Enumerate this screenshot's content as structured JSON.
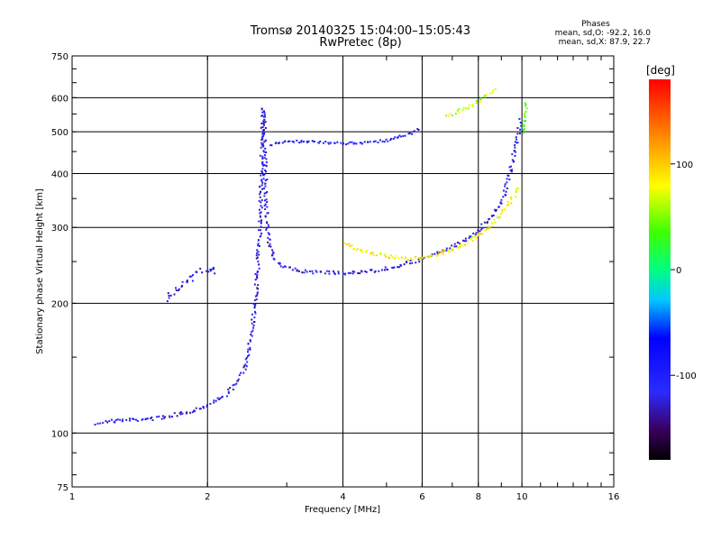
{
  "chart_data": {
    "type": "scatter",
    "title": "Tromsø 20140325 15:04:00–15:05:43",
    "subtitle": "RwPretec (8p)",
    "xlabel": "Frequency [MHz]",
    "ylabel": "Stationary phase Virtual Height [km]",
    "x_scale": "log",
    "y_scale": "log",
    "xlim": [
      1,
      16
    ],
    "ylim": [
      75,
      750
    ],
    "x_ticks": [
      1,
      2,
      4,
      6,
      8,
      10,
      16
    ],
    "y_ticks": [
      75,
      100,
      200,
      300,
      400,
      500,
      600,
      750
    ],
    "grid": true,
    "stats": {
      "header": "Phases",
      "line_o": "mean, sd,O: -92.2, 16.0",
      "line_x": "mean, sd,X:  87.9, 22.7"
    },
    "colorbar": {
      "label": "[deg]",
      "ticks": [
        100,
        0,
        -100
      ],
      "range": [
        -180,
        180
      ]
    },
    "series": [
      {
        "points": [
          [
            1.13,
            106
          ],
          [
            1.2,
            107
          ],
          [
            1.3,
            107.5
          ],
          [
            1.4,
            108
          ],
          [
            1.5,
            108.5
          ],
          [
            1.6,
            109.5
          ],
          [
            1.7,
            111
          ],
          [
            1.8,
            112.5
          ],
          [
            1.9,
            114.5
          ],
          [
            2.0,
            117
          ],
          [
            2.1,
            120
          ],
          [
            2.2,
            124
          ],
          [
            2.3,
            130
          ],
          [
            2.4,
            140
          ],
          [
            2.45,
            155
          ],
          [
            2.5,
            175
          ],
          [
            2.55,
            210
          ],
          [
            2.6,
            290
          ],
          [
            2.62,
            380
          ],
          [
            2.64,
            500
          ],
          [
            2.65,
            570
          ],
          [
            2.7,
            300
          ],
          [
            2.75,
            270
          ],
          [
            2.8,
            255
          ],
          [
            2.9,
            245
          ],
          [
            3.1,
            240
          ],
          [
            3.5,
            237
          ],
          [
            4.0,
            236
          ],
          [
            4.5,
            238
          ],
          [
            5.0,
            242
          ],
          [
            5.5,
            248
          ],
          [
            6.0,
            255
          ],
          [
            6.5,
            263
          ],
          [
            7.0,
            272
          ],
          [
            7.5,
            284
          ],
          [
            8.0,
            298
          ],
          [
            8.5,
            318
          ],
          [
            9.0,
            350
          ],
          [
            9.2,
            375
          ],
          [
            9.5,
            430
          ],
          [
            9.7,
            480
          ],
          [
            9.9,
            540
          ]
        ],
        "phase": -120,
        "spread": 4
      },
      {
        "points": [
          [
            1.6,
            205
          ],
          [
            1.7,
            215
          ],
          [
            1.8,
            225
          ],
          [
            1.9,
            238
          ],
          [
            2.0,
            242
          ],
          [
            2.05,
            240
          ],
          [
            2.1,
            236
          ]
        ],
        "phase": -115,
        "spread": 6
      },
      {
        "points": [
          [
            2.75,
            470
          ],
          [
            3.0,
            475
          ],
          [
            3.3,
            478
          ],
          [
            3.6,
            475
          ],
          [
            4.0,
            472
          ],
          [
            4.5,
            475
          ],
          [
            5.0,
            480
          ],
          [
            5.4,
            490
          ],
          [
            5.7,
            500
          ],
          [
            5.9,
            515
          ]
        ],
        "phase": -110,
        "spread": 3
      },
      {
        "points": [
          [
            4.0,
            275
          ],
          [
            4.3,
            268
          ],
          [
            4.7,
            262
          ],
          [
            5.0,
            258
          ],
          [
            5.3,
            256
          ],
          [
            5.6,
            255
          ],
          [
            6.0,
            257
          ],
          [
            6.5,
            262
          ],
          [
            7.0,
            268
          ],
          [
            7.5,
            278
          ],
          [
            8.0,
            290
          ],
          [
            8.5,
            305
          ],
          [
            9.0,
            325
          ],
          [
            9.5,
            355
          ],
          [
            9.8,
            375
          ]
        ],
        "phase": 85,
        "spread": 4
      },
      {
        "points": [
          [
            6.8,
            545
          ],
          [
            7.2,
            560
          ],
          [
            7.6,
            575
          ],
          [
            8.0,
            595
          ],
          [
            8.4,
            615
          ],
          [
            8.7,
            630
          ]
        ],
        "phase": 60,
        "spread": 4
      },
      {
        "points": [
          [
            10.0,
            500
          ],
          [
            10.1,
            530
          ],
          [
            10.15,
            560
          ],
          [
            10.2,
            590
          ]
        ],
        "phase": 40,
        "spread": 3
      }
    ]
  }
}
